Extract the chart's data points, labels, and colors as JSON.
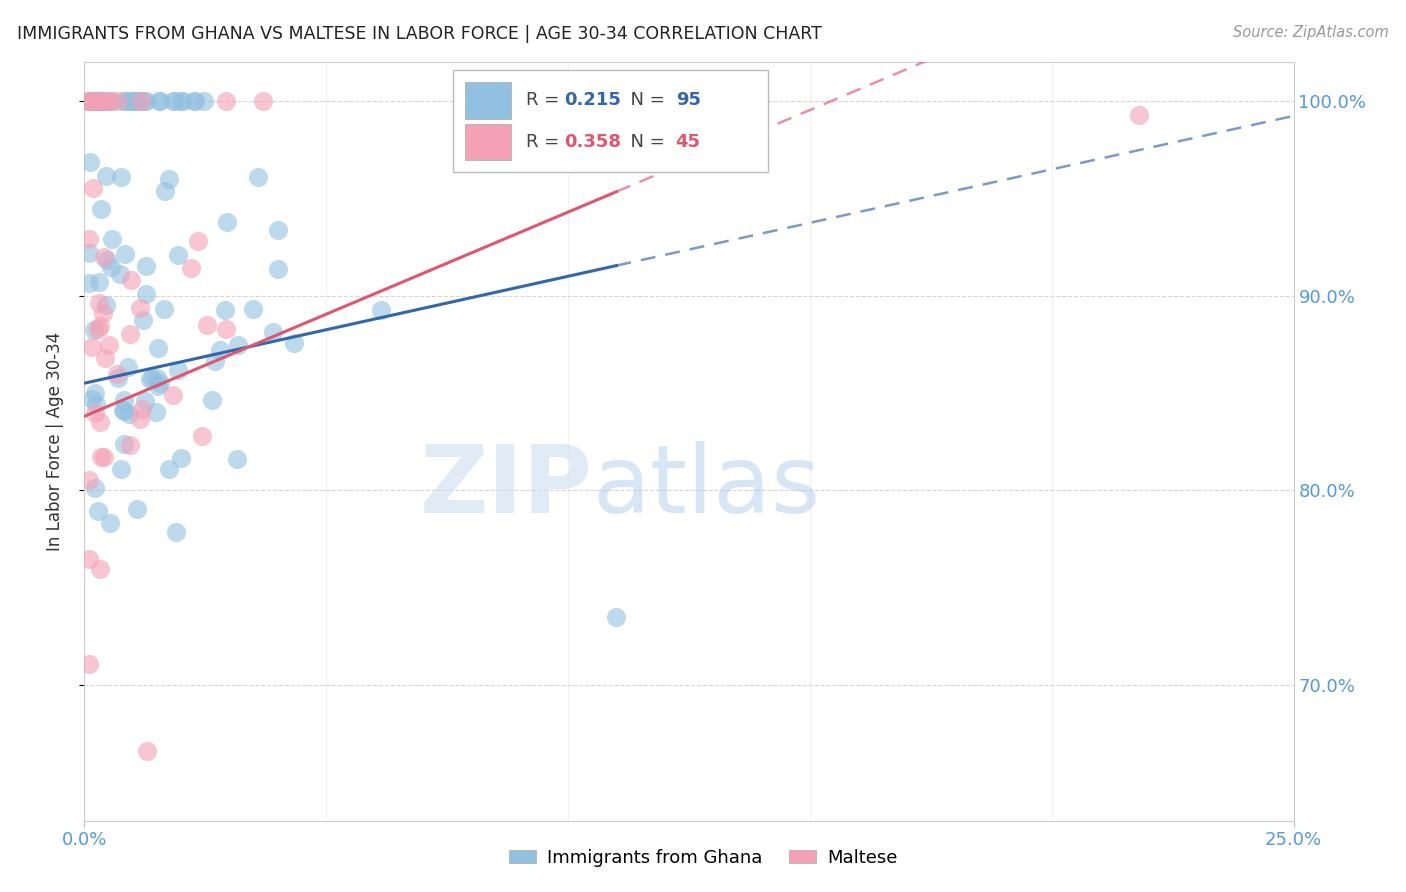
{
  "title": "IMMIGRANTS FROM GHANA VS MALTESE IN LABOR FORCE | AGE 30-34 CORRELATION CHART",
  "source": "Source: ZipAtlas.com",
  "ylabel": "In Labor Force | Age 30-34",
  "watermark_zip": "ZIP",
  "watermark_atlas": "atlas",
  "legend_blue_r": "0.215",
  "legend_blue_n": "95",
  "legend_pink_r": "0.358",
  "legend_pink_n": "45",
  "series1_label": "Immigrants from Ghana",
  "series2_label": "Maltese",
  "xlim": [
    0.0,
    0.25
  ],
  "ylim": [
    0.63,
    1.02
  ],
  "yticks": [
    0.7,
    0.8,
    0.9,
    1.0
  ],
  "ytick_labels": [
    "70.0%",
    "80.0%",
    "90.0%",
    "100.0%"
  ],
  "blue_color": "#92C0E0",
  "pink_color": "#F4A0B5",
  "blue_line_color": "#3366AA",
  "pink_line_color": "#E05570",
  "axis_label_color": "#5599DD",
  "grid_color": "#CCCCCC",
  "title_color": "#222222"
}
